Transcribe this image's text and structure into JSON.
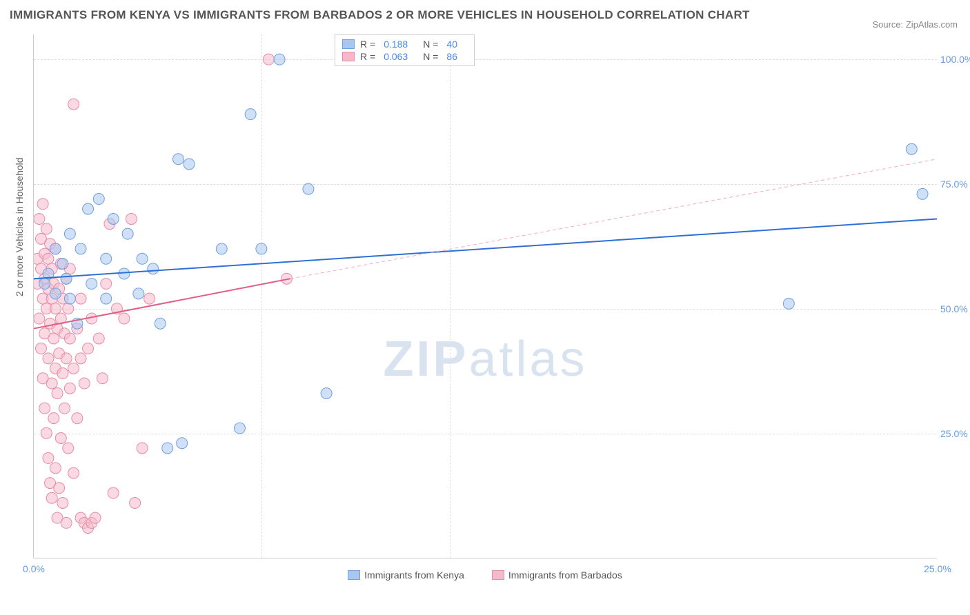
{
  "title": "IMMIGRANTS FROM KENYA VS IMMIGRANTS FROM BARBADOS 2 OR MORE VEHICLES IN HOUSEHOLD CORRELATION CHART",
  "source": "Source: ZipAtlas.com",
  "y_axis_title": "2 or more Vehicles in Household",
  "watermark_a": "ZIP",
  "watermark_b": "atlas",
  "chart": {
    "type": "scatter",
    "xlim": [
      0,
      25
    ],
    "ylim": [
      0,
      105
    ],
    "xticks": [
      0,
      25
    ],
    "xtick_labels": [
      "0.0%",
      "25.0%"
    ],
    "yticks": [
      25,
      50,
      75,
      100
    ],
    "ytick_labels": [
      "25.0%",
      "50.0%",
      "75.0%",
      "100.0%"
    ],
    "extra_v_grid": [
      6.3,
      11.5
    ],
    "grid_color": "#dddddd",
    "background_color": "#ffffff",
    "marker_radius": 8,
    "marker_opacity": 0.55,
    "line_width": 2
  },
  "series": [
    {
      "name": "Immigrants from Kenya",
      "color_fill": "#a7c7f0",
      "color_stroke": "#6e9fe0",
      "reg_color": "#2e6fd6",
      "R": "0.188",
      "N": "40",
      "reg_line": {
        "x1": 0,
        "y1": 56,
        "x2": 25,
        "y2": 68
      },
      "points": [
        [
          0.3,
          55
        ],
        [
          0.4,
          57
        ],
        [
          0.6,
          53
        ],
        [
          0.6,
          62
        ],
        [
          0.8,
          59
        ],
        [
          0.9,
          56
        ],
        [
          1.0,
          52
        ],
        [
          1.0,
          65
        ],
        [
          1.2,
          47
        ],
        [
          1.3,
          62
        ],
        [
          1.5,
          70
        ],
        [
          1.6,
          55
        ],
        [
          1.8,
          72
        ],
        [
          2.0,
          52
        ],
        [
          2.0,
          60
        ],
        [
          2.2,
          68
        ],
        [
          2.5,
          57
        ],
        [
          2.6,
          65
        ],
        [
          2.9,
          53
        ],
        [
          3.0,
          60
        ],
        [
          3.3,
          58
        ],
        [
          3.5,
          47
        ],
        [
          3.7,
          22
        ],
        [
          4.0,
          80
        ],
        [
          4.1,
          23
        ],
        [
          4.3,
          79
        ],
        [
          5.2,
          62
        ],
        [
          5.7,
          26
        ],
        [
          6.0,
          89
        ],
        [
          6.3,
          62
        ],
        [
          6.8,
          100
        ],
        [
          7.6,
          74
        ],
        [
          8.1,
          33
        ],
        [
          20.9,
          51
        ],
        [
          24.3,
          82
        ],
        [
          24.6,
          73
        ]
      ]
    },
    {
      "name": "Immigrants from Barbados",
      "color_fill": "#f5b9ca",
      "color_stroke": "#e88aa7",
      "reg_color": "#e25d88",
      "reg_dash_color": "#f2a9bd",
      "R": "0.063",
      "N": "86",
      "reg_line_solid": {
        "x1": 0,
        "y1": 46,
        "x2": 7.1,
        "y2": 56
      },
      "reg_line_dash": {
        "x1": 7.1,
        "y1": 56,
        "x2": 25,
        "y2": 80
      },
      "points": [
        [
          0.1,
          60
        ],
        [
          0.1,
          55
        ],
        [
          0.15,
          48
        ],
        [
          0.15,
          68
        ],
        [
          0.2,
          42
        ],
        [
          0.2,
          58
        ],
        [
          0.2,
          64
        ],
        [
          0.25,
          36
        ],
        [
          0.25,
          52
        ],
        [
          0.25,
          71
        ],
        [
          0.3,
          30
        ],
        [
          0.3,
          45
        ],
        [
          0.3,
          56
        ],
        [
          0.3,
          61
        ],
        [
          0.35,
          25
        ],
        [
          0.35,
          50
        ],
        [
          0.35,
          66
        ],
        [
          0.4,
          20
        ],
        [
          0.4,
          40
        ],
        [
          0.4,
          54
        ],
        [
          0.4,
          60
        ],
        [
          0.45,
          15
        ],
        [
          0.45,
          47
        ],
        [
          0.45,
          63
        ],
        [
          0.5,
          12
        ],
        [
          0.5,
          35
        ],
        [
          0.5,
          52
        ],
        [
          0.5,
          58
        ],
        [
          0.55,
          28
        ],
        [
          0.55,
          44
        ],
        [
          0.55,
          55
        ],
        [
          0.6,
          18
        ],
        [
          0.6,
          38
        ],
        [
          0.6,
          50
        ],
        [
          0.6,
          62
        ],
        [
          0.65,
          8
        ],
        [
          0.65,
          33
        ],
        [
          0.65,
          46
        ],
        [
          0.7,
          14
        ],
        [
          0.7,
          41
        ],
        [
          0.7,
          54
        ],
        [
          0.75,
          24
        ],
        [
          0.75,
          48
        ],
        [
          0.75,
          59
        ],
        [
          0.8,
          11
        ],
        [
          0.8,
          37
        ],
        [
          0.8,
          52
        ],
        [
          0.85,
          30
        ],
        [
          0.85,
          45
        ],
        [
          0.9,
          7
        ],
        [
          0.9,
          40
        ],
        [
          0.9,
          56
        ],
        [
          0.95,
          22
        ],
        [
          0.95,
          50
        ],
        [
          1.0,
          34
        ],
        [
          1.0,
          44
        ],
        [
          1.0,
          58
        ],
        [
          1.1,
          17
        ],
        [
          1.1,
          38
        ],
        [
          1.1,
          91
        ],
        [
          1.2,
          28
        ],
        [
          1.2,
          46
        ],
        [
          1.3,
          8
        ],
        [
          1.3,
          40
        ],
        [
          1.3,
          52
        ],
        [
          1.4,
          7
        ],
        [
          1.4,
          35
        ],
        [
          1.5,
          6
        ],
        [
          1.5,
          42
        ],
        [
          1.6,
          7
        ],
        [
          1.6,
          48
        ],
        [
          1.7,
          8
        ],
        [
          1.8,
          44
        ],
        [
          1.9,
          36
        ],
        [
          2.0,
          55
        ],
        [
          2.1,
          67
        ],
        [
          2.2,
          13
        ],
        [
          2.3,
          50
        ],
        [
          2.5,
          48
        ],
        [
          2.7,
          68
        ],
        [
          2.8,
          11
        ],
        [
          3.0,
          22
        ],
        [
          3.2,
          52
        ],
        [
          6.5,
          100
        ],
        [
          7.0,
          56
        ]
      ]
    }
  ],
  "legend_bottom": [
    {
      "label": "Immigrants from Kenya",
      "fill": "#a7c7f0",
      "stroke": "#6e9fe0"
    },
    {
      "label": "Immigrants from Barbados",
      "fill": "#f5b9ca",
      "stroke": "#e88aa7"
    }
  ]
}
